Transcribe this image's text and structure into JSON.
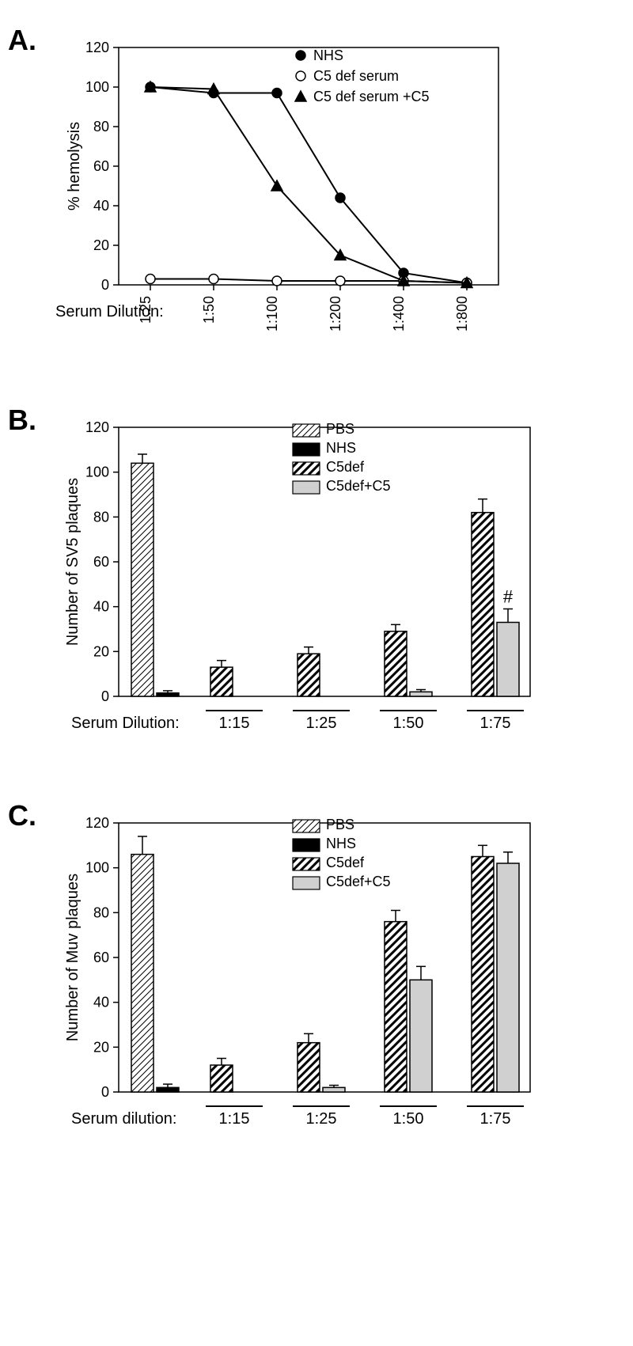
{
  "panelA": {
    "label": "A.",
    "type": "line-scatter",
    "ylabel": "% hemolysis",
    "xlabel": "Serum Dilution:",
    "ylim": [
      0,
      120
    ],
    "ytick_step": 20,
    "x_categories": [
      "1:25",
      "1:50",
      "1:100",
      "1:200",
      "1:400",
      "1:800"
    ],
    "legend": [
      {
        "label": "NHS",
        "marker": "circle-filled"
      },
      {
        "label": "C5 def serum",
        "marker": "circle-open"
      },
      {
        "label": "C5 def serum +C5",
        "marker": "triangle-filled"
      }
    ],
    "series": {
      "NHS": [
        100,
        97,
        97,
        44,
        6,
        1
      ],
      "C5def": [
        3,
        3,
        2,
        2,
        2,
        1
      ],
      "C5defC5": [
        100,
        99,
        50,
        15,
        2,
        1
      ]
    },
    "colors": {
      "line": "#000000",
      "background": "#ffffff"
    }
  },
  "panelB": {
    "label": "B.",
    "type": "bar-grouped",
    "ylabel": "Number of SV5 plaques",
    "xlabel": "Serum Dilution:",
    "ylim": [
      0,
      120
    ],
    "ytick_step": 20,
    "groups": [
      "1:15",
      "1:25",
      "1:50",
      "1:75"
    ],
    "legend": [
      {
        "label": "PBS",
        "fill": "hatch-thin"
      },
      {
        "label": "NHS",
        "fill": "solid-black"
      },
      {
        "label": "C5def",
        "fill": "hatch-thick"
      },
      {
        "label": "C5def+C5",
        "fill": "solid-grey"
      }
    ],
    "pbs": {
      "value": 104,
      "err": 4
    },
    "nhs": {
      "value": 1.5,
      "err": 1
    },
    "bars": [
      {
        "c5def": {
          "v": 13,
          "e": 3
        },
        "c5defc5": {
          "v": 0,
          "e": 0
        }
      },
      {
        "c5def": {
          "v": 19,
          "e": 3
        },
        "c5defc5": {
          "v": 0,
          "e": 0
        }
      },
      {
        "c5def": {
          "v": 29,
          "e": 3
        },
        "c5defc5": {
          "v": 2,
          "e": 1
        }
      },
      {
        "c5def": {
          "v": 82,
          "e": 6
        },
        "c5defc5": {
          "v": 33,
          "e": 6
        }
      }
    ],
    "annotation": {
      "symbol": "#",
      "target": "group4-c5defc5"
    },
    "colors": {
      "black": "#000000",
      "grey": "#d0d0d0",
      "white": "#ffffff"
    }
  },
  "panelC": {
    "label": "C.",
    "type": "bar-grouped",
    "ylabel": "Number of Muv plaques",
    "xlabel": "Serum dilution:",
    "ylim": [
      0,
      120
    ],
    "ytick_step": 20,
    "groups": [
      "1:15",
      "1:25",
      "1:50",
      "1:75"
    ],
    "legend": [
      {
        "label": "PBS",
        "fill": "hatch-thin"
      },
      {
        "label": "NHS",
        "fill": "solid-black"
      },
      {
        "label": "C5def",
        "fill": "hatch-thick"
      },
      {
        "label": "C5def+C5",
        "fill": "solid-grey"
      }
    ],
    "pbs": {
      "value": 106,
      "err": 8
    },
    "nhs": {
      "value": 2,
      "err": 1.5
    },
    "bars": [
      {
        "c5def": {
          "v": 12,
          "e": 3
        },
        "c5defc5": {
          "v": 0,
          "e": 0
        }
      },
      {
        "c5def": {
          "v": 22,
          "e": 4
        },
        "c5defc5": {
          "v": 2,
          "e": 1
        }
      },
      {
        "c5def": {
          "v": 76,
          "e": 5
        },
        "c5defc5": {
          "v": 50,
          "e": 6
        }
      },
      {
        "c5def": {
          "v": 105,
          "e": 5
        },
        "c5defc5": {
          "v": 102,
          "e": 5
        }
      }
    ],
    "colors": {
      "black": "#000000",
      "grey": "#d0d0d0",
      "white": "#ffffff"
    }
  }
}
